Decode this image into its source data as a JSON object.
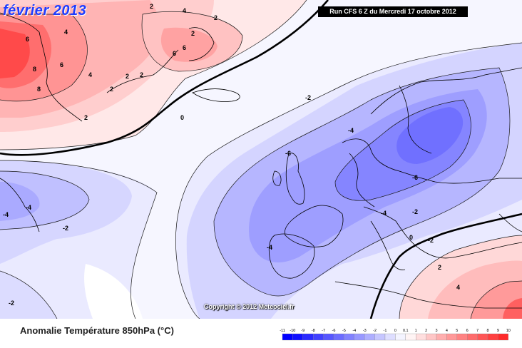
{
  "map": {
    "title": "février 2013",
    "run_info": "Run CFS 6 Z du Mercredi 17 octobre 2012",
    "copyright": "Copyright © 2012 Meteociel.fr",
    "contour_labels": [
      "6",
      "8",
      "6",
      "8",
      "4",
      "2",
      "2",
      "4",
      "6",
      "6",
      "2",
      "2",
      "2",
      "4",
      "2",
      "2",
      "0",
      "-2",
      "-4",
      "-4",
      "-6",
      "-6",
      "-4",
      "-2",
      "-2",
      "0",
      "-4",
      "-2",
      "-4",
      "-2",
      "2",
      "4"
    ]
  },
  "legend": {
    "caption": "Anomalie Température 850hPa (°C)",
    "ticks": [
      "-11",
      "-10",
      "-9",
      "-8",
      "-7",
      "-6",
      "-5",
      "-4",
      "-3",
      "-2",
      "-1",
      "0",
      "0.1",
      "1",
      "2",
      "3",
      "4",
      "5",
      "6",
      "7",
      "8",
      "9",
      "10"
    ],
    "colors": [
      "#0000ff",
      "#1010ff",
      "#2a2aff",
      "#4040ff",
      "#5656ff",
      "#6c6cff",
      "#8282ff",
      "#9898ff",
      "#aeaeff",
      "#c6c6ff",
      "#dedeff",
      "#f4f4ff",
      "#fff4f4",
      "#ffdede",
      "#ffc6c6",
      "#ffaeae",
      "#ff9898",
      "#ff8282",
      "#ff6c6c",
      "#ff5656",
      "#ff4040",
      "#ff2a2a"
    ]
  }
}
